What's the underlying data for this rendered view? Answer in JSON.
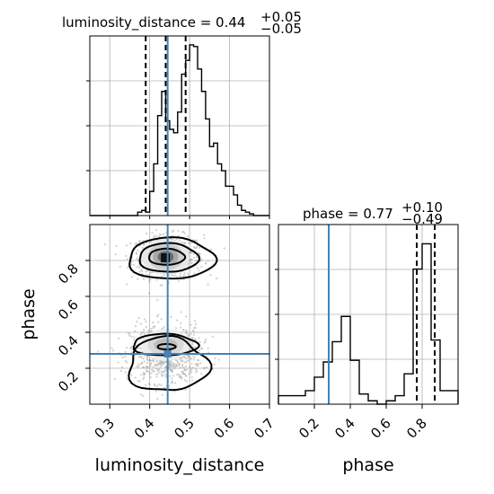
{
  "chart_data": {
    "type": "corner",
    "parameters": [
      "luminosity_distance",
      "phase"
    ],
    "truth": {
      "luminosity_distance": 0.445,
      "phase": 0.28
    },
    "panels": [
      {
        "name": "luminosity_distance-marginal",
        "type": "histogram",
        "title_main": "luminosity_distance = 0.44",
        "title_plus": "+0.05",
        "title_minus": "−0.05",
        "xlim": [
          0.25,
          0.7
        ],
        "bins": [
          0.25,
          0.26,
          0.27,
          0.28,
          0.29,
          0.3,
          0.31,
          0.32,
          0.33,
          0.34,
          0.35,
          0.36,
          0.37,
          0.38,
          0.39,
          0.4,
          0.41,
          0.42,
          0.43,
          0.44,
          0.45,
          0.46,
          0.47,
          0.48,
          0.49,
          0.5,
          0.51,
          0.52,
          0.53,
          0.54,
          0.55,
          0.56,
          0.57,
          0.58,
          0.59,
          0.6,
          0.61,
          0.62,
          0.63,
          0.64,
          0.65,
          0.66,
          0.67,
          0.68,
          0.69,
          0.7
        ],
        "counts": [
          0,
          0,
          0,
          0,
          0,
          0,
          0,
          0,
          0,
          0,
          0,
          0,
          0.02,
          0.03,
          0.02,
          0.14,
          0.3,
          0.58,
          0.72,
          0.55,
          0.5,
          0.48,
          0.6,
          0.82,
          0.9,
          0.99,
          0.98,
          0.85,
          0.72,
          0.56,
          0.4,
          0.42,
          0.3,
          0.26,
          0.17,
          0.17,
          0.12,
          0.06,
          0.03,
          0.02,
          0.01,
          0,
          0,
          0,
          0
        ],
        "quantiles": [
          0.39,
          0.44,
          0.49
        ]
      },
      {
        "name": "phase-marginal",
        "type": "histogram",
        "title_main": "phase = 0.77",
        "title_plus": "+0.10",
        "title_minus": "−0.49",
        "xlim": [
          0.0,
          1.0
        ],
        "bins": [
          0.0,
          0.05,
          0.1,
          0.15,
          0.2,
          0.25,
          0.3,
          0.35,
          0.4,
          0.45,
          0.5,
          0.55,
          0.6,
          0.65,
          0.7,
          0.75,
          0.8,
          0.85,
          0.9,
          0.95,
          1.0
        ],
        "counts": [
          0.05,
          0.05,
          0.05,
          0.08,
          0.16,
          0.25,
          0.37,
          0.52,
          0.26,
          0.06,
          0.02,
          0.0,
          0.02,
          0.05,
          0.18,
          0.8,
          0.95,
          0.38,
          0.08,
          0.08
        ],
        "quantiles": [
          0.28,
          0.77,
          0.87
        ]
      },
      {
        "name": "joint-distribution",
        "type": "2d-density",
        "xlim": [
          0.25,
          0.7
        ],
        "ylim": [
          0.0,
          1.0
        ],
        "modes": [
          {
            "x": 0.44,
            "y": 0.82
          },
          {
            "x": 0.44,
            "y": 0.33
          }
        ]
      }
    ],
    "axes": {
      "x_labels": [
        "luminosity_distance",
        "phase"
      ],
      "y_label": "phase",
      "lumdist_ticks": [
        "0.3",
        "0.4",
        "0.5",
        "0.6",
        "0.7"
      ],
      "phase_ticks": [
        "0.2",
        "0.4",
        "0.6",
        "0.8"
      ]
    },
    "colors": {
      "truth": "#4682b4",
      "line": "#000000",
      "grid": "#b0b0b0"
    },
    "grid": true
  }
}
